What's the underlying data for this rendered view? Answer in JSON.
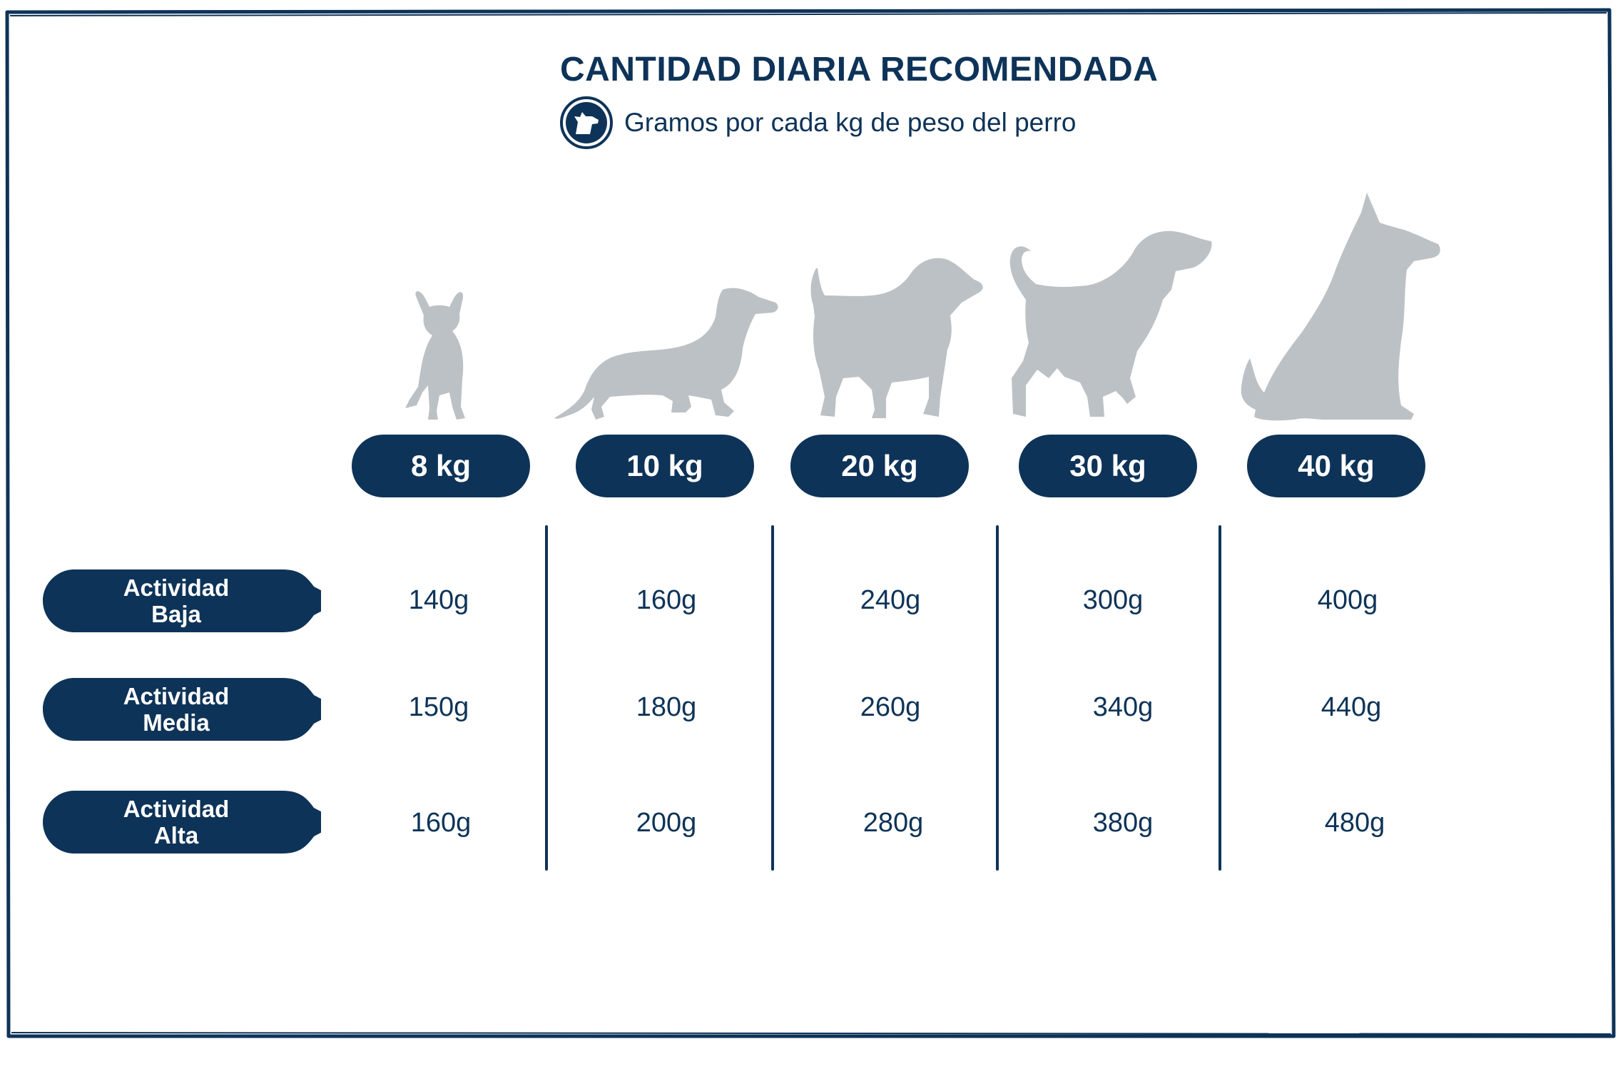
{
  "header": {
    "title": "CANTIDAD DIARIA RECOMENDADA",
    "subtitle": "Gramos por cada kg de peso del perro",
    "icon": "dog-head-icon"
  },
  "colors": {
    "navy": "#0e3358",
    "silhouette": "#bcc1c5",
    "white": "#ffffff"
  },
  "weights": [
    "8 kg",
    "10 kg",
    "20 kg",
    "30 kg",
    "40 kg"
  ],
  "activities": [
    {
      "line1": "Actividad",
      "line2": "Baja",
      "values": [
        "140g",
        "160g",
        "240g",
        "300g",
        "400g"
      ]
    },
    {
      "line1": "Actividad",
      "line2": "Media",
      "values": [
        "150g",
        "180g",
        "260g",
        "340g",
        "440g"
      ]
    },
    {
      "line1": "Actividad",
      "line2": "Alta",
      "values": [
        "160g",
        "200g",
        "280g",
        "380g",
        "480g"
      ]
    }
  ]
}
